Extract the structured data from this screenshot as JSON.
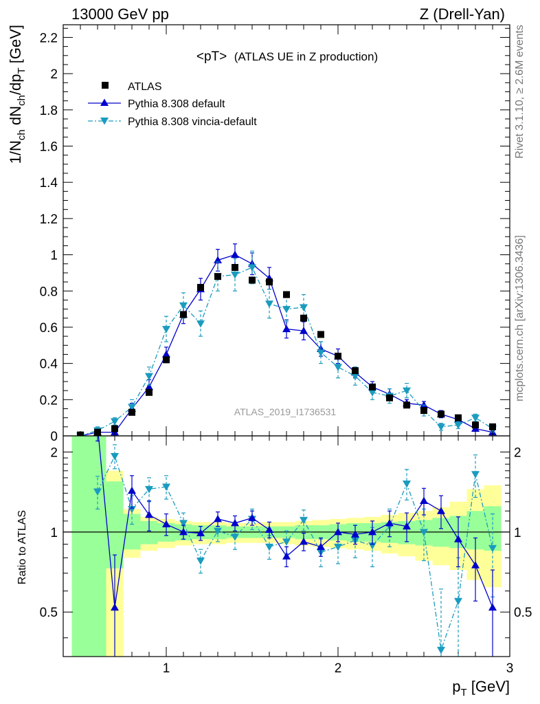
{
  "header": {
    "left": "13000 GeV pp",
    "right": "Z (Drell-Yan)"
  },
  "side_labels": {
    "rivet": "Rivet 3.1.10, ≥ 2.6M events",
    "mcplots": "mcplots.cern.ch [arXiv:1306.3436]"
  },
  "analysis_id": "ATLAS_2019_I1736531",
  "colors": {
    "atlas": "#000000",
    "pythia_default": "#0000cc",
    "pythia_vincia": "#1a9bbf",
    "band_stat": "#99ff99",
    "band_total": "#ffff99"
  },
  "chart_data": [
    {
      "type": "scatter",
      "title_main": "<pT>",
      "title_sub": "(ATLAS UE in Z production)",
      "ylabel": "1/N_ch dN_ch/dp_T [GeV]",
      "ylabel_parts": [
        "1/N",
        "ch",
        " dN",
        "ch",
        "/dp",
        "T",
        " [GeV]"
      ],
      "xlim": [
        0.4,
        3.0
      ],
      "ylim": [
        0,
        2.27
      ],
      "yticks": [
        0,
        0.2,
        0.4,
        0.6,
        0.8,
        1,
        1.2,
        1.4,
        1.6,
        1.8,
        2,
        2.2
      ],
      "ytick_labels": [
        "0",
        "0.2",
        "0.4",
        "0.6",
        "0.8",
        "1",
        "1.2",
        "1.4",
        "1.6",
        "1.8",
        "2",
        "2.2"
      ],
      "legend_position": "top-left",
      "series": [
        {
          "name": "ATLAS",
          "marker": "square",
          "x": [
            0.5,
            0.6,
            0.7,
            0.8,
            0.9,
            1.0,
            1.1,
            1.2,
            1.3,
            1.4,
            1.5,
            1.6,
            1.7,
            1.8,
            1.9,
            2.0,
            2.1,
            2.2,
            2.3,
            2.4,
            2.5,
            2.6,
            2.7,
            2.8,
            2.9
          ],
          "y": [
            0.005,
            0.02,
            0.04,
            0.13,
            0.24,
            0.42,
            0.67,
            0.82,
            0.88,
            0.93,
            0.86,
            0.85,
            0.78,
            0.65,
            0.56,
            0.44,
            0.36,
            0.27,
            0.21,
            0.17,
            0.14,
            0.12,
            0.1,
            0.06,
            0.05
          ]
        },
        {
          "name": "Pythia 8.308 default",
          "marker": "triangle-up",
          "line": "solid",
          "x": [
            0.5,
            0.6,
            0.7,
            0.8,
            0.9,
            1.0,
            1.1,
            1.2,
            1.3,
            1.4,
            1.5,
            1.6,
            1.7,
            1.8,
            1.9,
            2.0,
            2.1,
            2.2,
            2.3,
            2.4,
            2.5,
            2.6,
            2.7,
            2.8,
            2.9
          ],
          "y": [
            0.0,
            0.02,
            0.02,
            0.15,
            0.27,
            0.45,
            0.67,
            0.81,
            0.97,
            1.0,
            0.95,
            0.87,
            0.59,
            0.58,
            0.48,
            0.44,
            0.35,
            0.27,
            0.23,
            0.18,
            0.17,
            0.12,
            0.09,
            0.04,
            0.02
          ],
          "err": [
            0.01,
            0.01,
            0.02,
            0.03,
            0.04,
            0.04,
            0.05,
            0.06,
            0.06,
            0.06,
            0.06,
            0.06,
            0.05,
            0.05,
            0.04,
            0.04,
            0.03,
            0.03,
            0.03,
            0.02,
            0.02,
            0.02,
            0.02,
            0.01,
            0.01
          ]
        },
        {
          "name": "Pythia 8.308 vincia-default",
          "marker": "triangle-down",
          "line": "dash-dot",
          "x": [
            0.5,
            0.6,
            0.7,
            0.8,
            0.9,
            1.0,
            1.1,
            1.2,
            1.3,
            1.4,
            1.5,
            1.6,
            1.7,
            1.8,
            1.9,
            2.0,
            2.1,
            2.2,
            2.3,
            2.4,
            2.5,
            2.6,
            2.7,
            2.8,
            2.9
          ],
          "y": [
            0.0,
            0.03,
            0.08,
            0.16,
            0.33,
            0.59,
            0.72,
            0.62,
            0.88,
            0.89,
            0.93,
            0.73,
            0.7,
            0.71,
            0.46,
            0.38,
            0.33,
            0.24,
            0.22,
            0.25,
            0.14,
            0.05,
            0.06,
            0.1,
            0.04
          ],
          "err": [
            0.01,
            0.02,
            0.02,
            0.04,
            0.05,
            0.07,
            0.07,
            0.07,
            0.08,
            0.09,
            0.09,
            0.08,
            0.07,
            0.07,
            0.06,
            0.06,
            0.05,
            0.04,
            0.04,
            0.04,
            0.03,
            0.02,
            0.02,
            0.02,
            0.02
          ]
        }
      ]
    },
    {
      "type": "line",
      "ylabel": "Ratio to ATLAS",
      "xlabel_parts": [
        "p",
        "T",
        " [GeV]"
      ],
      "xlabel": "p_T [GeV]",
      "xlim": [
        0.4,
        3.0
      ],
      "ylim": [
        0.34,
        2.3
      ],
      "xticks": [
        1,
        2,
        3
      ],
      "xtick_labels": [
        "1",
        "2",
        "3"
      ],
      "yticks": [
        0.5,
        1,
        2
      ],
      "ytick_labels": [
        "0.5",
        "1",
        "2"
      ],
      "reference_line": 1,
      "bands": {
        "edges": [
          0.45,
          0.55,
          0.65,
          0.75,
          0.85,
          0.95,
          1.05,
          1.15,
          1.25,
          1.35,
          1.45,
          1.55,
          1.65,
          1.75,
          1.85,
          1.95,
          2.05,
          2.15,
          2.25,
          2.35,
          2.45,
          2.55,
          2.65,
          2.75,
          2.85,
          2.95
        ],
        "stat_low": [
          0.2,
          0.2,
          0.73,
          0.86,
          0.9,
          0.92,
          0.93,
          0.94,
          0.94,
          0.95,
          0.95,
          0.95,
          0.95,
          0.94,
          0.94,
          0.93,
          0.92,
          0.92,
          0.91,
          0.9,
          0.89,
          0.88,
          0.87,
          0.86,
          0.85
        ],
        "stat_high": [
          2.3,
          2.3,
          1.55,
          1.17,
          1.1,
          1.08,
          1.07,
          1.06,
          1.06,
          1.05,
          1.05,
          1.05,
          1.05,
          1.06,
          1.06,
          1.07,
          1.08,
          1.08,
          1.09,
          1.1,
          1.11,
          1.13,
          1.15,
          1.2,
          1.25
        ],
        "total_low": [
          0.2,
          0.2,
          0.2,
          0.8,
          0.85,
          0.87,
          0.89,
          0.9,
          0.9,
          0.91,
          0.91,
          0.91,
          0.9,
          0.89,
          0.88,
          0.87,
          0.86,
          0.85,
          0.83,
          0.81,
          0.78,
          0.75,
          0.72,
          0.66,
          0.62
        ],
        "total_high": [
          2.3,
          2.3,
          1.7,
          1.22,
          1.14,
          1.12,
          1.1,
          1.09,
          1.09,
          1.08,
          1.08,
          1.09,
          1.09,
          1.1,
          1.11,
          1.12,
          1.13,
          1.14,
          1.16,
          1.18,
          1.2,
          1.24,
          1.3,
          1.45,
          1.5
        ]
      },
      "series": [
        {
          "name": "Pythia 8.308 default",
          "x": [
            0.5,
            0.6,
            0.7,
            0.8,
            0.9,
            1.0,
            1.1,
            1.2,
            1.3,
            1.4,
            1.5,
            1.6,
            1.7,
            1.8,
            1.9,
            2.0,
            2.1,
            2.2,
            2.3,
            2.4,
            2.5,
            2.6,
            2.7,
            2.8,
            2.9
          ],
          "y": [
            null,
            2.5,
            0.52,
            1.43,
            1.16,
            1.07,
            1.0,
            0.99,
            1.12,
            1.08,
            1.13,
            1.02,
            0.81,
            0.92,
            0.88,
            1.0,
            0.98,
            1.0,
            1.08,
            1.05,
            1.31,
            1.2,
            0.94,
            0.75,
            0.52
          ],
          "err": [
            0,
            0.3,
            0.3,
            0.2,
            0.15,
            0.1,
            0.06,
            0.06,
            0.07,
            0.07,
            0.07,
            0.07,
            0.07,
            0.07,
            0.07,
            0.08,
            0.08,
            0.1,
            0.12,
            0.13,
            0.15,
            0.17,
            0.2,
            0.2,
            0.2
          ]
        },
        {
          "name": "Pythia 8.308 vincia-default",
          "x": [
            0.5,
            0.6,
            0.7,
            0.8,
            0.9,
            1.0,
            1.1,
            1.2,
            1.3,
            1.4,
            1.5,
            1.6,
            1.7,
            1.8,
            1.9,
            2.0,
            2.1,
            2.2,
            2.3,
            2.4,
            2.5,
            2.6,
            2.7,
            2.8,
            2.9
          ],
          "y": [
            null,
            1.42,
            1.93,
            1.22,
            1.45,
            1.48,
            1.08,
            0.78,
            1.01,
            0.96,
            1.12,
            0.88,
            0.92,
            1.11,
            0.84,
            0.88,
            0.93,
            0.89,
            1.05,
            1.52,
            1.0,
            0.36,
            0.55,
            1.65,
            0.87
          ],
          "err": [
            0,
            0.2,
            0.2,
            0.15,
            0.15,
            0.15,
            0.1,
            0.08,
            0.09,
            0.1,
            0.1,
            0.09,
            0.09,
            0.1,
            0.1,
            0.12,
            0.13,
            0.15,
            0.17,
            0.2,
            0.22,
            0.25,
            0.25,
            0.3,
            0.3
          ]
        }
      ]
    }
  ]
}
